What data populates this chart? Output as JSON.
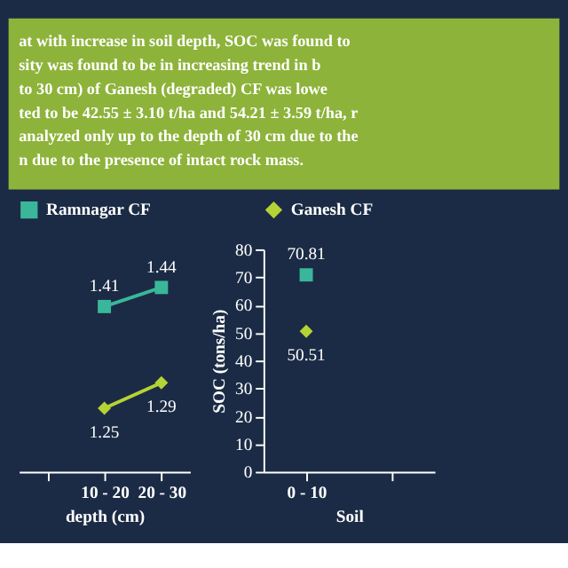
{
  "chart_data": [
    {
      "type": "other",
      "annotations": [
        "at with increase in soil depth, SOC was found to",
        "sity was found to be in increasing trend in b",
        "to 30 cm) of Ganesh (degraded) CF was lowe",
        "ted to be 42.55 ± 3.10 t/ha and 54.21 ± 3.59 t/ha, r",
        "analyzed only up to the depth of 30 cm due to the",
        "n due to the presence of intact rock mass."
      ]
    },
    {
      "type": "line",
      "categories": [
        null,
        "10 - 20",
        "20 - 30"
      ],
      "xlabel": "depth (cm)",
      "data_labels": true,
      "legend": "top",
      "tick_labels": "x",
      "series": [
        {
          "name": "Ramnagar CF",
          "color": "#3ab79a",
          "marker": "square",
          "values": [
            null,
            1.41,
            1.44
          ]
        },
        {
          "color": "#b5d334",
          "marker": "diamond",
          "values": [
            null,
            1.25,
            1.29
          ]
        }
      ]
    },
    {
      "type": "line",
      "categories": [
        "0 - 10",
        null
      ],
      "xlabel": "Soil",
      "ylabel": "SOC (tons/ha)",
      "ylim": [
        0,
        80
      ],
      "yticks": [
        0,
        10,
        20,
        30,
        40,
        50,
        60,
        70,
        80
      ],
      "data_labels": true,
      "legend": "top",
      "series": [
        {
          "color": "#3ab79a",
          "marker": "square",
          "values": [
            70.81,
            null
          ]
        },
        {
          "name": "Ganesh CF",
          "color": "#b5d334",
          "marker": "diamond",
          "values": [
            50.51,
            null
          ]
        }
      ]
    }
  ]
}
